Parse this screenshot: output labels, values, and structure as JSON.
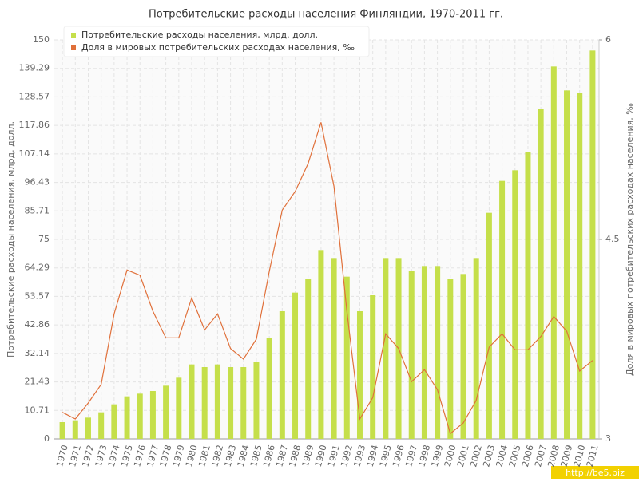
{
  "chart_data": {
    "type": "bar",
    "title": "Потребительские расходы населения Финляндии, 1970-2011 гг.",
    "y_label": "Потребительские расходы населения, млрд. долл.",
    "y2_label": "Доля в мировых потребительских расходах населения, ‰",
    "watermark": "http://be5.biz",
    "categories": [
      "1970",
      "1971",
      "1972",
      "1973",
      "1974",
      "1975",
      "1976",
      "1977",
      "1978",
      "1979",
      "1980",
      "1981",
      "1982",
      "1983",
      "1984",
      "1985",
      "1986",
      "1987",
      "1988",
      "1989",
      "1990",
      "1991",
      "1992",
      "1993",
      "1994",
      "1995",
      "1996",
      "1997",
      "1998",
      "1999",
      "2000",
      "2001",
      "2002",
      "2003",
      "2004",
      "2005",
      "2006",
      "2007",
      "2008",
      "2009",
      "2010",
      "2011"
    ],
    "series": [
      {
        "name": "Потребительские расходы населения, млрд. долл.",
        "type": "bar",
        "color": "#c5df4a",
        "values": [
          6.3,
          7,
          8,
          10,
          13,
          16,
          17,
          18,
          20,
          23,
          28,
          27,
          28,
          27,
          27,
          29,
          38,
          48,
          55,
          60,
          71,
          68,
          61,
          48,
          54,
          68,
          68,
          63,
          65,
          65,
          60,
          62,
          68,
          85,
          97,
          101,
          108,
          124,
          140,
          131,
          130,
          146
        ]
      },
      {
        "name": "Доля в мировых потребительских расходах населения, ‰",
        "type": "line",
        "axis": "y2",
        "color": "#e0703a",
        "values": [
          3.2,
          3.15,
          3.27,
          3.41,
          3.94,
          4.27,
          4.23,
          3.96,
          3.76,
          3.76,
          4.06,
          3.82,
          3.94,
          3.68,
          3.6,
          3.75,
          4.26,
          4.72,
          4.86,
          5.07,
          5.38,
          4.9,
          3.96,
          3.15,
          3.31,
          3.79,
          3.68,
          3.43,
          3.52,
          3.37,
          3.04,
          3.12,
          3.29,
          3.69,
          3.79,
          3.67,
          3.67,
          3.77,
          3.92,
          3.81,
          3.51,
          3.59
        ]
      }
    ],
    "ylim": [
      0,
      150
    ],
    "yticks": [
      0,
      10.71,
      21.43,
      32.14,
      42.86,
      53.57,
      64.29,
      75,
      85.71,
      96.43,
      107.14,
      117.86,
      128.57,
      139.29,
      150
    ],
    "y2lim": [
      3,
      6
    ],
    "y2ticks": [
      3,
      4.5,
      6
    ],
    "grid": true,
    "legend": "top-left"
  }
}
